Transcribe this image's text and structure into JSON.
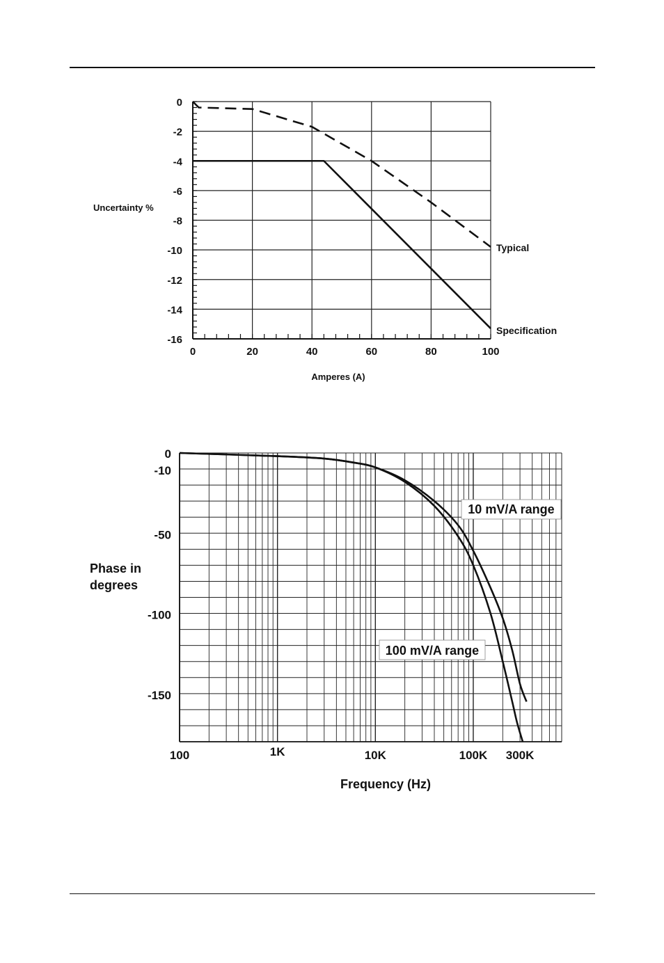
{
  "page": {
    "header_rule": true,
    "footer_rule": true
  },
  "chart_data": [
    {
      "type": "line",
      "ylabel": "Uncertainty %",
      "xlabel": "Amperes (A)",
      "xlim": [
        0,
        100
      ],
      "ylim": [
        -16,
        0
      ],
      "x_ticks": [
        "0",
        "20",
        "40",
        "60",
        "80",
        "100"
      ],
      "x_tick_values": [
        0,
        20,
        40,
        60,
        80,
        100
      ],
      "y_ticks": [
        "0",
        "-2",
        "-4",
        "-6",
        "-8",
        "-10",
        "-12",
        "-14",
        "-16"
      ],
      "y_tick_values": [
        0,
        -2,
        -4,
        -6,
        -8,
        -10,
        -12,
        -14,
        -16
      ],
      "grid": true,
      "series": [
        {
          "name": "Typical",
          "style": "dashed",
          "x": [
            0,
            2,
            20,
            40,
            60,
            80,
            100
          ],
          "y": [
            0,
            -0.4,
            -0.5,
            -1.7,
            -4.0,
            -6.8,
            -9.8
          ]
        },
        {
          "name": "Specification",
          "style": "solid",
          "x": [
            0,
            44,
            100
          ],
          "y": [
            -4,
            -4,
            -15.3
          ]
        }
      ]
    },
    {
      "type": "line",
      "x_scale": "log",
      "ylabel": "Phase in\ndegrees",
      "xlabel": "Frequency (Hz)",
      "xlim": [
        100,
        800000
      ],
      "ylim": [
        -180,
        0
      ],
      "x_ticks": [
        "100",
        "1K",
        "10K",
        "100K",
        "300K"
      ],
      "x_tick_values": [
        100,
        1000,
        10000,
        100000,
        300000
      ],
      "y_ticks": [
        "0",
        "-10",
        "-50",
        "-100",
        "-150"
      ],
      "y_tick_values": [
        0,
        -10,
        -50,
        -100,
        -150
      ],
      "grid": true,
      "series": [
        {
          "name": "10 mV/A range",
          "x": [
            100,
            1000,
            3000,
            6000,
            10000,
            20000,
            40000,
            70000,
            100000,
            150000,
            200000,
            250000,
            300000,
            350000
          ],
          "y": [
            0,
            -2,
            -3.5,
            -6,
            -9,
            -17,
            -30,
            -45,
            -61,
            -84,
            -103,
            -123,
            -144,
            -155
          ]
        },
        {
          "name": "100 mV/A range",
          "x": [
            100,
            1000,
            3000,
            6000,
            10000,
            20000,
            40000,
            70000,
            100000,
            150000,
            200000,
            250000,
            280000,
            320000
          ],
          "y": [
            0,
            -2,
            -3.5,
            -6,
            -9,
            -18,
            -33,
            -52,
            -70,
            -100,
            -130,
            -155,
            -168,
            -180
          ]
        }
      ]
    }
  ]
}
